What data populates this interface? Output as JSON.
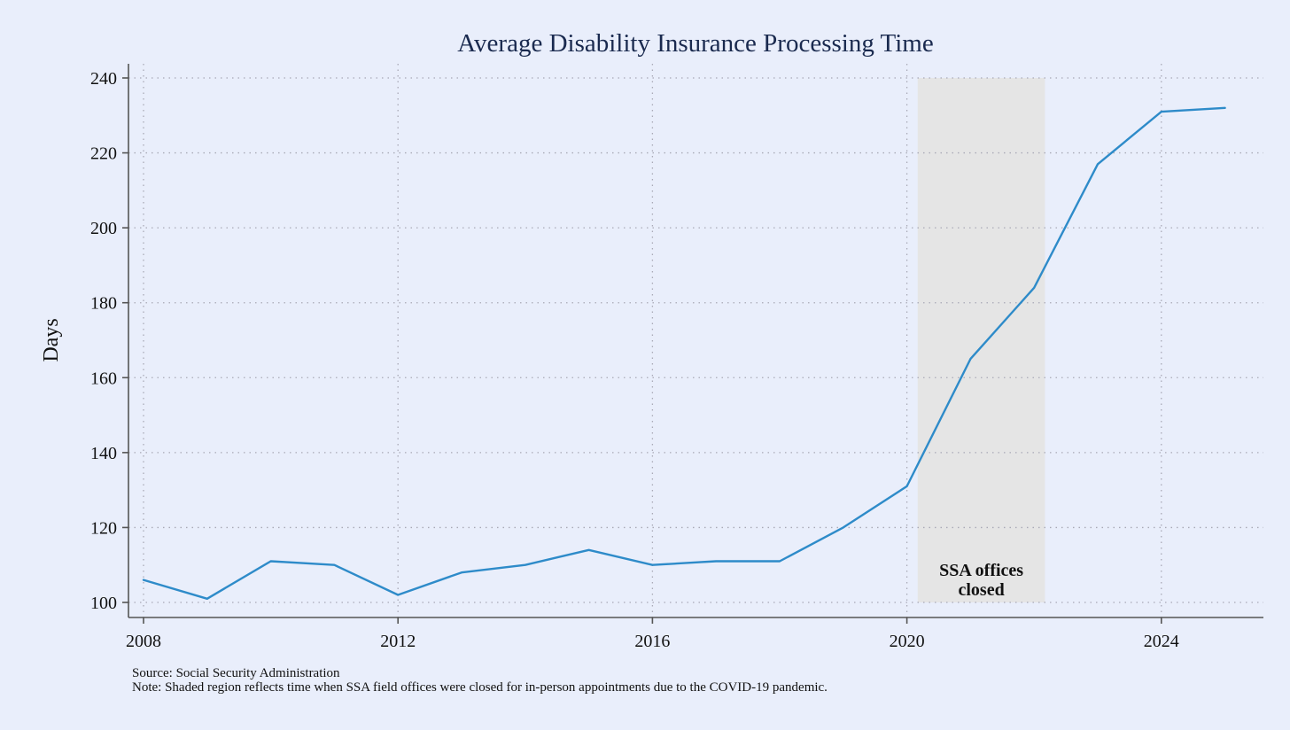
{
  "colors": {
    "background": "#e9eefb",
    "series": "#2e8bc9",
    "shade": "#e5e5e5",
    "title": "#1a2a4f"
  },
  "chart_data": {
    "type": "line",
    "title": "Average Disability Insurance Processing Time",
    "xlabel": "",
    "ylabel": "Days",
    "xlim": [
      2008,
      2025.5
    ],
    "ylim": [
      100,
      240
    ],
    "x_ticks": [
      2008,
      2012,
      2016,
      2020,
      2024
    ],
    "y_ticks": [
      100,
      120,
      140,
      160,
      180,
      200,
      220,
      240
    ],
    "grid": true,
    "series": [
      {
        "x": [
          2008,
          2009,
          2010,
          2011,
          2012,
          2013,
          2014,
          2015,
          2016,
          2017,
          2018,
          2019,
          2020,
          2021,
          2022,
          2023,
          2024,
          2025
        ],
        "values": [
          106,
          101,
          111,
          110,
          102,
          108,
          110,
          114,
          110,
          111,
          111,
          120,
          131,
          165,
          184,
          217,
          231,
          232
        ]
      }
    ],
    "shaded_region": {
      "x_start": 2020.17,
      "x_end": 2022.17,
      "label_lines": [
        "SSA offices",
        "closed"
      ]
    }
  },
  "footnotes": {
    "source": "Source: Social Security Administration",
    "note": "Note: Shaded region reflects time when SSA field offices were closed for in-person appointments due to the COVID-19 pandemic."
  }
}
